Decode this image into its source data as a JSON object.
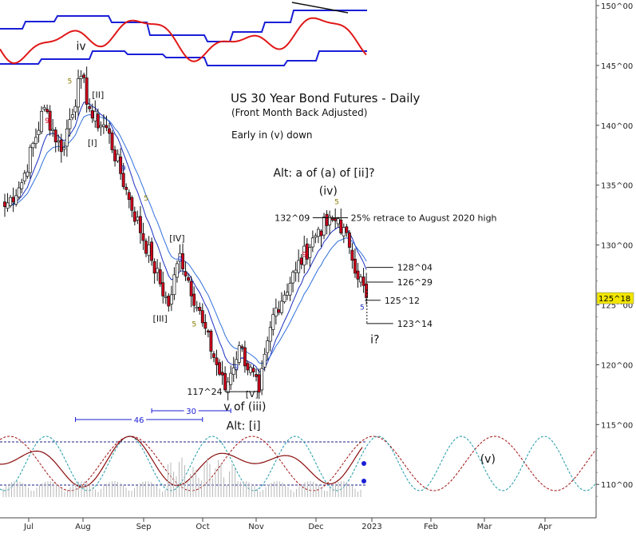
{
  "chart_data": {
    "type": "candlestick",
    "title": "US 30 Year Bond Futures - Daily",
    "subtitle": "(Front Month Back Adjusted)",
    "comment": "Early in (v) down",
    "price_scale": {
      "ylim": [
        108,
        150.6
      ],
      "ticks": [
        {
          "value": 110,
          "label": "110^00"
        },
        {
          "value": 115,
          "label": "115^00"
        },
        {
          "value": 120,
          "label": "120^00"
        },
        {
          "value": 125,
          "label": "125^00"
        },
        {
          "value": 130,
          "label": "130^00"
        },
        {
          "value": 135,
          "label": "135^00"
        },
        {
          "value": 140,
          "label": "140^00"
        },
        {
          "value": 145,
          "label": "145^00"
        },
        {
          "value": 150,
          "label": "150^00"
        }
      ],
      "last_price": {
        "value": 125.56,
        "label": "125^18",
        "color": "#f2e600"
      }
    },
    "time_axis": {
      "labels": [
        "Jul",
        "Aug",
        "Sep",
        "Oct",
        "Nov",
        "Dec",
        "2023",
        "Feb",
        "Mar",
        "Apr"
      ]
    },
    "series": [
      {
        "name": "price",
        "color_up": "#ffffff",
        "color_down": "#d0021b",
        "anchors": [
          [
            0,
            133.2
          ],
          [
            6,
            135.2
          ],
          [
            14,
            141.5
          ],
          [
            20,
            137.8
          ],
          [
            27,
            144.1
          ],
          [
            31,
            140.6
          ],
          [
            36,
            139.8
          ],
          [
            44,
            133.8
          ],
          [
            52,
            128.7
          ],
          [
            58,
            124.9
          ],
          [
            62,
            129.3
          ],
          [
            70,
            123.5
          ],
          [
            78,
            117.9
          ],
          [
            83,
            121.6
          ],
          [
            90,
            117.7
          ],
          [
            95,
            124.2
          ],
          [
            103,
            127.9
          ],
          [
            111,
            131.3
          ],
          [
            118,
            132.2
          ],
          [
            122,
            129.8
          ],
          [
            128,
            125.6
          ]
        ]
      },
      {
        "name": "fast_ma",
        "color": "#1a2fbf"
      },
      {
        "name": "slow_ma",
        "color": "#2f6fdc"
      }
    ],
    "wave_labels": [
      {
        "text": "iv",
        "x": 27,
        "y": 146.3
      },
      {
        "text": "[II]",
        "x": 33,
        "y": 142.3
      },
      {
        "text": "[I]",
        "x": 31,
        "y": 138.3
      },
      {
        "text": "[IV]",
        "x": 61,
        "y": 130.3
      },
      {
        "text": "[III]",
        "x": 55,
        "y": 123.6
      },
      {
        "text": "[V]",
        "x": 87.5,
        "y": 117.3
      },
      {
        "text": "(iv)",
        "x": 114.5,
        "y": 134.2
      },
      {
        "text": "v of (iii)",
        "x": 85,
        "y": 116.2
      },
      {
        "text": "Alt: [i]",
        "x": 84.5,
        "y": 114.6
      },
      {
        "text": "Alt: a of (a) of [ii]?",
        "x": 113,
        "y": 135.7
      },
      {
        "text": "i?",
        "x": 131,
        "y": 121.8
      },
      {
        "text": "(v)",
        "x": 171,
        "y": 111.8
      }
    ],
    "count_marks": [
      {
        "text": "9",
        "x": 15,
        "y": 140.2,
        "color": "#d0021b"
      },
      {
        "text": "5",
        "x": 23,
        "y": 143.5,
        "color": "#8a7a00"
      },
      {
        "text": "9",
        "x": 42,
        "y": 136.2,
        "color": "#1a2fbf"
      },
      {
        "text": "5",
        "x": 50,
        "y": 133.7,
        "color": "#8a7a00"
      },
      {
        "text": "9",
        "x": 62,
        "y": 128.6,
        "color": "#1a2fbf"
      },
      {
        "text": "5",
        "x": 67,
        "y": 123.2,
        "color": "#8a7a00"
      },
      {
        "text": "9",
        "x": 82,
        "y": 119.6,
        "color": "#1a2fbf"
      },
      {
        "text": "9",
        "x": 106,
        "y": 129.0,
        "color": "#d0021b"
      },
      {
        "text": "5",
        "x": 117.5,
        "y": 133.4,
        "color": "#8a7a00"
      },
      {
        "text": "5",
        "x": 126.5,
        "y": 124.6,
        "color": "#1a2fbf"
      }
    ],
    "level_annotations": [
      {
        "text": "117^24",
        "value": 117.75,
        "x": 70
      },
      {
        "text": "132^09",
        "value": 132.28,
        "x": 106
      },
      {
        "text": "25% retrace to August 2020 high",
        "value": 132.28,
        "x": 122.5
      },
      {
        "text": "128^04",
        "value": 128.13,
        "x": 138
      },
      {
        "text": "126^29",
        "value": 126.9,
        "x": 138
      },
      {
        "text": "125^12",
        "value": 125.38,
        "x": 134
      },
      {
        "text": "123^14",
        "value": 123.44,
        "x": 138
      }
    ],
    "cycle_spans": [
      {
        "label": "46",
        "start_x": 25,
        "end_x": 70
      },
      {
        "label": "30",
        "start_x": 52,
        "end_x": 80
      }
    ],
    "upper_indicator": {
      "lines": [
        "blue upper band",
        "blue lower band",
        "red oscillator"
      ]
    },
    "lower_indicator": {
      "cycles": [
        "dark red dashed sine",
        "teal dashed sine",
        "dark red composite"
      ],
      "volume": "grey bars"
    }
  }
}
